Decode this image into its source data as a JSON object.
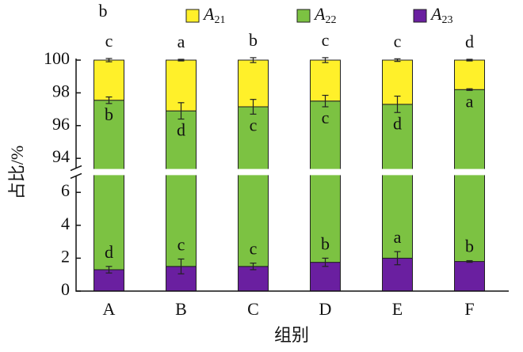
{
  "chart_data": {
    "type": "stacked_bar",
    "panel_label": "b",
    "x_label": "组别",
    "y_label": "占比/%",
    "categories": [
      "A",
      "B",
      "C",
      "D",
      "E",
      "F"
    ],
    "ylim": [
      0,
      100
    ],
    "axis_break": [
      7,
      93.4
    ],
    "yticks": [
      0,
      2,
      4,
      6,
      94,
      96,
      98,
      100
    ],
    "series": [
      {
        "name": "A23",
        "color": "#6a1fa0",
        "values": [
          1.3,
          1.5,
          1.5,
          1.75,
          2.0,
          1.8
        ],
        "errors": [
          0.2,
          0.45,
          0.2,
          0.25,
          0.4,
          0.05
        ],
        "labels": [
          "d",
          "c",
          "c",
          "b",
          "a",
          "b"
        ]
      },
      {
        "name": "A22",
        "color": "#7cc242",
        "values": [
          96.25,
          95.4,
          95.65,
          95.75,
          95.3,
          96.4
        ],
        "errors": [
          0.2,
          0.5,
          0.45,
          0.35,
          0.5,
          0.05
        ],
        "labels": [
          "b",
          "d",
          "c",
          "c",
          "d",
          "a"
        ]
      },
      {
        "name": "A21",
        "color": "#fff02a",
        "values": [
          2.45,
          3.1,
          2.85,
          2.5,
          2.7,
          1.8
        ],
        "errors": [
          0.1,
          0.05,
          0.15,
          0.15,
          0.08,
          0.05
        ],
        "labels": [
          "c",
          "a",
          "b",
          "c",
          "c",
          "d"
        ]
      }
    ]
  }
}
